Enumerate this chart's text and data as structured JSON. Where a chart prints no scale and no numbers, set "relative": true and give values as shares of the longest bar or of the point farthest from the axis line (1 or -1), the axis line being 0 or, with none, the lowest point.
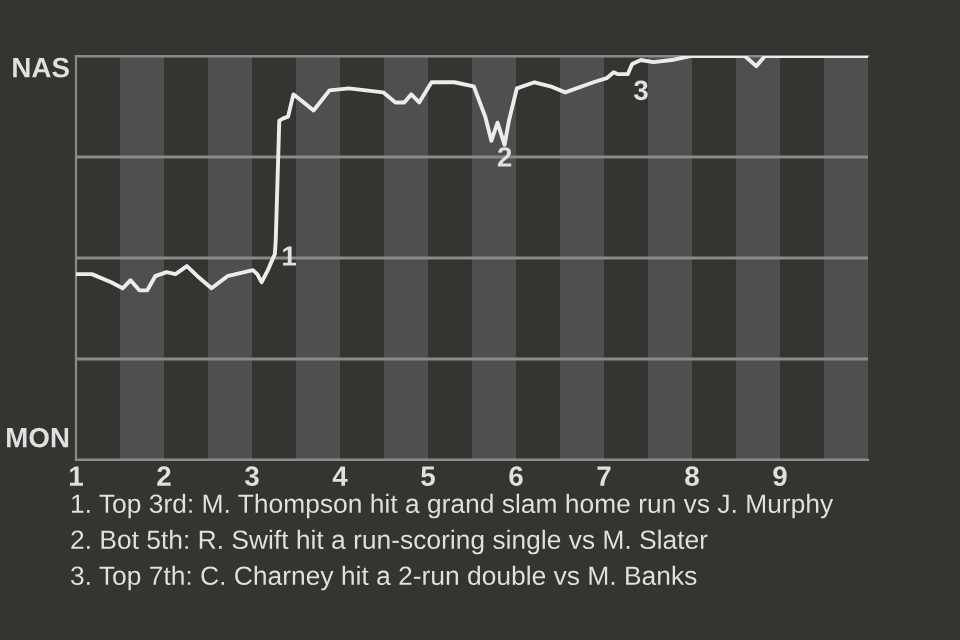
{
  "chart_data": {
    "type": "line",
    "relative": true,
    "x": [
      1.0,
      1.18,
      1.4,
      1.53,
      1.62,
      1.72,
      1.81,
      1.9,
      2.03,
      2.13,
      2.26,
      2.38,
      2.54,
      2.72,
      3.01,
      3.06,
      3.11,
      3.18,
      3.26,
      3.27,
      3.31,
      3.35,
      3.41,
      3.47,
      3.56,
      3.7,
      3.88,
      4.1,
      4.49,
      4.63,
      4.73,
      4.81,
      4.9,
      5.04,
      5.3,
      5.52,
      5.65,
      5.72,
      5.79,
      5.87,
      5.92,
      6.01,
      6.21,
      6.39,
      6.56,
      6.88,
      7.03,
      7.11,
      7.16,
      7.27,
      7.32,
      7.42,
      7.56,
      7.77,
      7.98,
      8.6,
      8.73,
      8.83,
      8.99,
      10.0
    ],
    "series": [
      {
        "color": "#ececec",
        "values": [
          0.46,
          0.46,
          0.44,
          0.425,
          0.445,
          0.42,
          0.42,
          0.455,
          0.465,
          0.46,
          0.48,
          0.455,
          0.425,
          0.455,
          0.47,
          0.46,
          0.44,
          0.47,
          0.51,
          0.545,
          0.84,
          0.845,
          0.85,
          0.905,
          0.89,
          0.865,
          0.915,
          0.92,
          0.91,
          0.885,
          0.885,
          0.905,
          0.885,
          0.935,
          0.935,
          0.925,
          0.85,
          0.79,
          0.835,
          0.78,
          0.84,
          0.92,
          0.935,
          0.925,
          0.91,
          0.935,
          0.945,
          0.96,
          0.955,
          0.955,
          0.98,
          0.99,
          0.985,
          0.99,
          1,
          1,
          0.975,
          1,
          1,
          1
        ]
      }
    ],
    "xlim": [
      1,
      10
    ],
    "xticks": [
      1,
      2,
      3,
      4,
      5,
      6,
      7,
      8,
      9
    ],
    "grid": "y",
    "legend": false,
    "marker": "none",
    "line_style": "solid",
    "bands": [
      {
        "axis": "x",
        "from": 1.5,
        "to": 2,
        "color": "#4f4f4f"
      },
      {
        "axis": "x",
        "from": 2.5,
        "to": 3,
        "color": "#4f4f4f"
      },
      {
        "axis": "x",
        "from": 3.5,
        "to": 4,
        "color": "#4f4f4f"
      },
      {
        "axis": "x",
        "from": 4.5,
        "to": 5,
        "color": "#4f4f4f"
      },
      {
        "axis": "x",
        "from": 5.5,
        "to": 6,
        "color": "#4f4f4f"
      },
      {
        "axis": "x",
        "from": 6.5,
        "to": 7,
        "color": "#4f4f4f"
      },
      {
        "axis": "x",
        "from": 7.5,
        "to": 8,
        "color": "#4f4f4f"
      },
      {
        "axis": "x",
        "from": 8.5,
        "to": 9,
        "color": "#4f4f4f"
      },
      {
        "axis": "x",
        "from": 9.5,
        "to": 10,
        "color": "#4f4f4f"
      }
    ],
    "annotations": [
      {
        "text": "1",
        "x": 3.27,
        "y": 0.545
      },
      {
        "text": "2",
        "x": 5.72,
        "y": 0.79
      },
      {
        "text": "3",
        "x": 7.27,
        "y": 0.955
      },
      "NAS",
      "MON",
      "1. Top 3rd: M. Thompson hit a grand slam home run vs J. Murphy",
      "2. Bot 5th: R. Swift hit a run-scoring single vs M. Slater",
      "3. Top 7th: C. Charney hit a 2-run double vs M. Banks"
    ]
  }
}
